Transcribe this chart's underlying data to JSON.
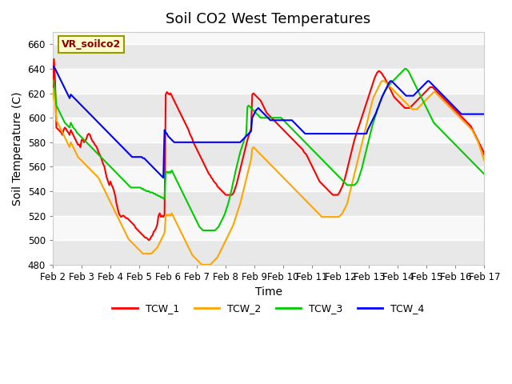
{
  "title": "Soil CO2 West Temperatures",
  "xlabel": "Time",
  "ylabel": "Soil Temperature (C)",
  "ylim": [
    480,
    670
  ],
  "yticks": [
    480,
    500,
    520,
    540,
    560,
    580,
    600,
    620,
    640,
    660
  ],
  "x_labels": [
    "Feb 2",
    "Feb 3",
    "Feb 4",
    "Feb 5",
    "Feb 6",
    "Feb 7",
    "Feb 8",
    "Feb 9",
    "Feb 10",
    "Feb 11",
    "Feb 12",
    "Feb 13",
    "Feb 14",
    "Feb 15",
    "Feb 16",
    "Feb 17"
  ],
  "legend_label": "VR_soilco2",
  "series_names": [
    "TCW_1",
    "TCW_2",
    "TCW_3",
    "TCW_4"
  ],
  "series_colors": [
    "#ff0000",
    "#ffa500",
    "#00cc00",
    "#0000ff"
  ],
  "background_color": "#ffffff",
  "plot_bg_bands": [
    [
      480,
      500,
      "#e8e8e8"
    ],
    [
      500,
      520,
      "#f8f8f8"
    ],
    [
      520,
      540,
      "#e8e8e8"
    ],
    [
      540,
      560,
      "#f8f8f8"
    ],
    [
      560,
      580,
      "#e8e8e8"
    ],
    [
      580,
      600,
      "#f8f8f8"
    ],
    [
      600,
      620,
      "#e8e8e8"
    ],
    [
      620,
      640,
      "#f8f8f8"
    ],
    [
      640,
      660,
      "#e8e8e8"
    ],
    [
      660,
      670,
      "#f8f8f8"
    ]
  ],
  "grid_color": "#ffffff",
  "title_fontsize": 13,
  "label_fontsize": 10,
  "tick_fontsize": 8.5,
  "line_width": 1.5,
  "TCW_1": [
    625,
    648,
    628,
    592,
    591,
    590,
    589,
    588,
    586,
    590,
    592,
    591,
    589,
    588,
    586,
    590,
    588,
    586,
    584,
    582,
    580,
    578,
    578,
    576,
    582,
    582,
    580,
    581,
    583,
    586,
    587,
    586,
    583,
    581,
    580,
    578,
    577,
    575,
    572,
    570,
    568,
    565,
    562,
    560,
    555,
    551,
    548,
    545,
    548,
    545,
    543,
    540,
    536,
    530,
    526,
    522,
    520,
    519,
    520,
    520,
    519,
    518,
    518,
    517,
    516,
    515,
    514,
    513,
    512,
    510,
    509,
    508,
    507,
    506,
    505,
    504,
    503,
    502,
    502,
    501,
    500,
    501,
    503,
    504,
    507,
    508,
    510,
    513,
    520,
    522,
    519,
    520,
    519,
    521,
    619,
    621,
    620,
    619,
    620,
    618,
    616,
    614,
    612,
    610,
    608,
    606,
    604,
    602,
    600,
    598,
    596,
    594,
    592,
    590,
    587,
    585,
    583,
    580,
    578,
    576,
    574,
    572,
    570,
    568,
    566,
    564,
    562,
    560,
    558,
    556,
    554,
    553,
    551,
    550,
    548,
    547,
    546,
    544,
    543,
    542,
    541,
    540,
    539,
    538,
    537,
    537,
    537,
    537,
    537,
    537,
    538,
    540,
    543,
    546,
    550,
    554,
    558,
    562,
    566,
    570,
    574,
    578,
    582,
    585,
    588,
    591,
    619,
    620,
    619,
    618,
    617,
    616,
    615,
    614,
    612,
    610,
    608,
    606,
    604,
    603,
    602,
    601,
    600,
    599,
    598,
    597,
    596,
    595,
    594,
    593,
    592,
    591,
    590,
    589,
    588,
    587,
    586,
    585,
    584,
    583,
    582,
    581,
    580,
    579,
    578,
    577,
    576,
    575,
    574,
    572,
    571,
    570,
    568,
    566,
    564,
    562,
    560,
    558,
    556,
    554,
    552,
    550,
    548,
    547,
    546,
    545,
    544,
    543,
    542,
    541,
    540,
    539,
    538,
    537,
    537,
    537,
    537,
    537,
    538,
    540,
    542,
    544,
    547,
    550,
    554,
    558,
    562,
    566,
    570,
    574,
    578,
    582,
    585,
    588,
    591,
    594,
    597,
    600,
    603,
    606,
    609,
    612,
    615,
    618,
    621,
    624,
    627,
    630,
    633,
    635,
    637,
    638,
    638,
    637,
    636,
    634,
    633,
    631,
    629,
    627,
    625,
    623,
    621,
    619,
    617,
    616,
    615,
    614,
    613,
    612,
    611,
    610,
    609,
    608,
    608,
    608,
    608,
    608,
    609,
    610,
    611,
    612,
    613,
    614,
    615,
    616,
    617,
    618,
    619,
    620,
    621,
    622,
    623,
    624,
    625,
    625,
    625,
    624,
    623,
    622,
    621,
    620,
    619,
    618,
    617,
    616,
    615,
    614,
    613,
    612,
    611,
    610,
    609,
    608,
    607,
    606,
    605,
    604,
    603,
    602,
    601,
    600,
    599,
    598,
    597,
    596,
    595,
    594,
    593,
    591,
    589,
    587,
    585,
    583,
    581,
    579,
    577,
    575,
    573,
    570
  ],
  "TCW_2": [
    615,
    624,
    615,
    598,
    596,
    594,
    592,
    590,
    588,
    586,
    584,
    582,
    580,
    578,
    576,
    580,
    578,
    576,
    574,
    572,
    570,
    568,
    567,
    566,
    565,
    564,
    563,
    562,
    561,
    560,
    559,
    558,
    557,
    556,
    555,
    554,
    553,
    552,
    551,
    549,
    547,
    545,
    543,
    541,
    539,
    537,
    535,
    533,
    531,
    529,
    527,
    525,
    523,
    521,
    519,
    517,
    515,
    513,
    511,
    509,
    507,
    505,
    503,
    501,
    500,
    499,
    498,
    497,
    496,
    495,
    494,
    493,
    492,
    491,
    490,
    489,
    489,
    489,
    489,
    489,
    489,
    489,
    489,
    490,
    491,
    492,
    493,
    494,
    496,
    498,
    500,
    502,
    504,
    506,
    519,
    521,
    520,
    521,
    520,
    522,
    520,
    518,
    516,
    514,
    512,
    510,
    508,
    506,
    504,
    502,
    500,
    498,
    496,
    494,
    492,
    490,
    488,
    487,
    486,
    485,
    484,
    483,
    482,
    481,
    480,
    480,
    480,
    480,
    480,
    480,
    480,
    480,
    481,
    482,
    483,
    484,
    485,
    486,
    488,
    490,
    492,
    494,
    496,
    498,
    500,
    502,
    504,
    506,
    508,
    510,
    512,
    515,
    518,
    521,
    524,
    527,
    530,
    534,
    538,
    542,
    546,
    550,
    554,
    558,
    562,
    566,
    575,
    576,
    575,
    574,
    573,
    572,
    571,
    570,
    569,
    568,
    567,
    566,
    565,
    564,
    563,
    562,
    561,
    560,
    559,
    558,
    557,
    556,
    555,
    554,
    553,
    552,
    551,
    550,
    549,
    548,
    547,
    546,
    545,
    544,
    543,
    542,
    541,
    540,
    539,
    538,
    537,
    536,
    535,
    534,
    533,
    532,
    531,
    530,
    529,
    528,
    527,
    526,
    525,
    524,
    523,
    522,
    521,
    520,
    519,
    519,
    519,
    519,
    519,
    519,
    519,
    519,
    519,
    519,
    519,
    519,
    519,
    519,
    519,
    520,
    521,
    522,
    524,
    526,
    528,
    530,
    534,
    538,
    542,
    546,
    550,
    554,
    558,
    562,
    566,
    570,
    574,
    578,
    582,
    586,
    590,
    594,
    598,
    602,
    606,
    610,
    614,
    617,
    619,
    621,
    623,
    625,
    627,
    629,
    630,
    630,
    630,
    629,
    628,
    627,
    626,
    625,
    624,
    623,
    622,
    621,
    620,
    619,
    618,
    617,
    616,
    615,
    614,
    613,
    612,
    611,
    610,
    609,
    608,
    607,
    607,
    607,
    607,
    607,
    608,
    609,
    610,
    611,
    612,
    613,
    614,
    615,
    616,
    617,
    618,
    619,
    620,
    621,
    621,
    620,
    619,
    618,
    617,
    616,
    615,
    614,
    613,
    612,
    611,
    610,
    609,
    608,
    607,
    606,
    605,
    604,
    603,
    602,
    601,
    600,
    599,
    598,
    597,
    596,
    595,
    594,
    593,
    592,
    591,
    590,
    588,
    586,
    584,
    582,
    580,
    577,
    574,
    571,
    568,
    565
  ],
  "TCW_3": [
    630,
    628,
    622,
    610,
    608,
    606,
    604,
    602,
    600,
    598,
    596,
    595,
    594,
    593,
    592,
    596,
    594,
    592,
    591,
    590,
    588,
    587,
    586,
    585,
    584,
    583,
    582,
    581,
    580,
    579,
    578,
    577,
    576,
    575,
    574,
    573,
    572,
    571,
    570,
    569,
    568,
    567,
    566,
    565,
    564,
    563,
    562,
    561,
    560,
    559,
    558,
    557,
    556,
    555,
    554,
    553,
    552,
    551,
    550,
    549,
    548,
    547,
    546,
    545,
    544,
    543,
    543,
    543,
    543,
    543,
    543,
    543,
    543,
    543,
    542,
    542,
    541,
    541,
    540,
    540,
    540,
    539,
    539,
    539,
    538,
    538,
    537,
    537,
    536,
    536,
    535,
    535,
    534,
    534,
    555,
    556,
    555,
    556,
    555,
    557,
    555,
    553,
    551,
    549,
    547,
    545,
    543,
    541,
    539,
    537,
    535,
    533,
    531,
    529,
    527,
    525,
    523,
    521,
    519,
    517,
    515,
    513,
    511,
    510,
    509,
    508,
    508,
    508,
    508,
    508,
    508,
    508,
    508,
    508,
    508,
    508,
    509,
    510,
    511,
    513,
    515,
    517,
    519,
    521,
    524,
    527,
    530,
    534,
    538,
    542,
    547,
    551,
    556,
    560,
    564,
    568,
    572,
    575,
    578,
    581,
    584,
    587,
    609,
    610,
    609,
    608,
    607,
    606,
    605,
    604,
    603,
    602,
    601,
    600,
    600,
    600,
    600,
    600,
    600,
    600,
    600,
    600,
    600,
    600,
    600,
    600,
    600,
    600,
    600,
    600,
    600,
    599,
    598,
    597,
    596,
    595,
    594,
    593,
    592,
    591,
    590,
    589,
    588,
    587,
    586,
    585,
    584,
    583,
    582,
    581,
    580,
    579,
    578,
    577,
    576,
    575,
    574,
    573,
    572,
    571,
    570,
    569,
    568,
    567,
    566,
    565,
    564,
    563,
    562,
    561,
    560,
    559,
    558,
    557,
    556,
    555,
    554,
    553,
    552,
    551,
    550,
    549,
    548,
    547,
    546,
    545,
    545,
    545,
    545,
    545,
    545,
    545,
    546,
    547,
    549,
    552,
    555,
    558,
    562,
    566,
    570,
    574,
    578,
    582,
    586,
    590,
    594,
    597,
    600,
    603,
    606,
    609,
    612,
    615,
    617,
    619,
    621,
    623,
    624,
    626,
    627,
    628,
    629,
    630,
    631,
    632,
    633,
    634,
    635,
    636,
    637,
    638,
    639,
    640,
    640,
    639,
    638,
    636,
    634,
    632,
    630,
    628,
    626,
    624,
    622,
    620,
    618,
    616,
    614,
    612,
    610,
    608,
    606,
    604,
    602,
    600,
    598,
    596,
    595,
    594,
    593,
    592,
    591,
    590,
    589,
    588,
    587,
    586,
    585,
    584,
    583,
    582,
    581,
    580,
    579,
    578,
    577,
    576,
    575,
    574,
    573,
    572,
    571,
    570,
    569,
    568,
    567,
    566,
    565,
    564,
    563,
    562,
    561,
    560,
    559,
    558,
    557,
    556,
    555,
    554
  ],
  "TCW_4": [
    642,
    641,
    640,
    638,
    636,
    634,
    632,
    630,
    628,
    626,
    624,
    622,
    620,
    618,
    616,
    619,
    618,
    617,
    616,
    615,
    614,
    613,
    612,
    611,
    610,
    609,
    608,
    607,
    606,
    605,
    604,
    603,
    602,
    601,
    600,
    599,
    598,
    597,
    596,
    595,
    594,
    593,
    592,
    591,
    590,
    589,
    588,
    587,
    586,
    585,
    584,
    583,
    582,
    581,
    580,
    579,
    578,
    577,
    576,
    575,
    574,
    573,
    572,
    571,
    570,
    569,
    568,
    568,
    568,
    568,
    568,
    568,
    568,
    568,
    568,
    567,
    567,
    566,
    565,
    564,
    563,
    562,
    561,
    560,
    559,
    558,
    557,
    556,
    555,
    554,
    553,
    552,
    551,
    590,
    588,
    587,
    585,
    584,
    583,
    582,
    581,
    580,
    580,
    580,
    580,
    580,
    580,
    580,
    580,
    580,
    580,
    580,
    580,
    580,
    580,
    580,
    580,
    580,
    580,
    580,
    580,
    580,
    580,
    580,
    580,
    580,
    580,
    580,
    580,
    580,
    580,
    580,
    580,
    580,
    580,
    580,
    580,
    580,
    580,
    580,
    580,
    580,
    580,
    580,
    580,
    580,
    580,
    580,
    580,
    580,
    580,
    580,
    580,
    580,
    580,
    580,
    580,
    581,
    582,
    583,
    584,
    585,
    586,
    587,
    588,
    589,
    600,
    602,
    604,
    606,
    607,
    608,
    607,
    606,
    605,
    604,
    603,
    602,
    601,
    600,
    599,
    598,
    598,
    598,
    598,
    598,
    598,
    598,
    598,
    598,
    598,
    598,
    598,
    598,
    598,
    598,
    598,
    598,
    598,
    598,
    597,
    596,
    595,
    594,
    593,
    592,
    591,
    590,
    589,
    588,
    587,
    587,
    587,
    587,
    587,
    587,
    587,
    587,
    587,
    587,
    587,
    587,
    587,
    587,
    587,
    587,
    587,
    587,
    587,
    587,
    587,
    587,
    587,
    587,
    587,
    587,
    587,
    587,
    587,
    587,
    587,
    587,
    587,
    587,
    587,
    587,
    587,
    587,
    587,
    587,
    587,
    587,
    587,
    587,
    587,
    587,
    587,
    587,
    587,
    587,
    587,
    587,
    590,
    592,
    594,
    596,
    598,
    600,
    602,
    604,
    607,
    609,
    612,
    614,
    617,
    619,
    621,
    623,
    625,
    627,
    629,
    630,
    630,
    629,
    628,
    627,
    626,
    625,
    624,
    623,
    622,
    621,
    620,
    619,
    618,
    618,
    618,
    618,
    618,
    618,
    618,
    619,
    620,
    621,
    622,
    623,
    624,
    625,
    626,
    627,
    628,
    629,
    630,
    630,
    629,
    628,
    627,
    626,
    625,
    624,
    623,
    622,
    621,
    620,
    619,
    618,
    617,
    616,
    615,
    614,
    613,
    612,
    611,
    610,
    609,
    608,
    607,
    606,
    605,
    604,
    603,
    603,
    603,
    603,
    603,
    603,
    603,
    603,
    603,
    603,
    603,
    603,
    603,
    603,
    603,
    603,
    603,
    603,
    603,
    603
  ]
}
